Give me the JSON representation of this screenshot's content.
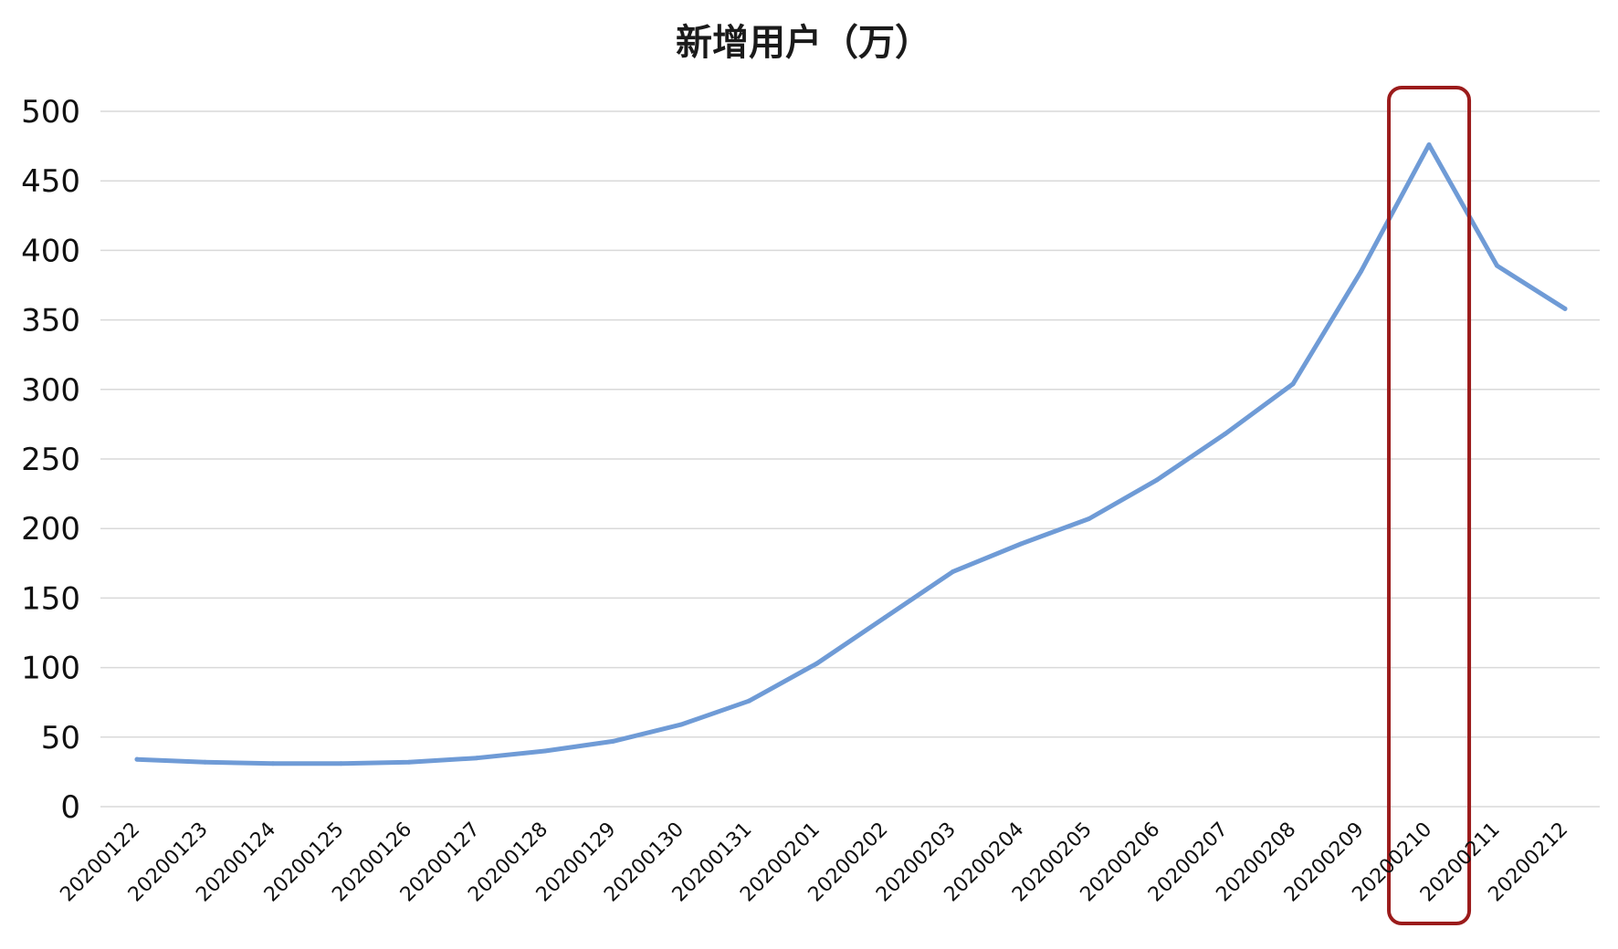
{
  "chart_data": {
    "type": "line",
    "title": "新增用户（万）",
    "xlabel": "",
    "ylabel": "",
    "categories": [
      "20200122",
      "20200123",
      "20200124",
      "20200125",
      "20200126",
      "20200127",
      "20200128",
      "20200129",
      "20200130",
      "20200131",
      "20200201",
      "20200202",
      "20200203",
      "20200204",
      "20200205",
      "20200206",
      "20200207",
      "20200208",
      "20200209",
      "20200210",
      "20200211",
      "20200212"
    ],
    "series": [
      {
        "values": [
          34,
          32,
          31,
          31,
          32,
          35,
          40,
          47,
          59,
          76,
          103,
          136,
          169,
          189,
          207,
          235,
          268,
          304,
          385,
          476,
          389,
          358
        ]
      }
    ],
    "ylim": [
      0,
      500
    ],
    "yticks": [
      "0",
      "50",
      "100",
      "150",
      "200",
      "250",
      "300",
      "350",
      "400",
      "450",
      "500"
    ],
    "grid": true,
    "legend": "none",
    "highlight_category": "20200210",
    "line_color": "#6F9BD6",
    "highlight_color": "#9B1B1B",
    "grid_color": "#d9d9d9"
  }
}
